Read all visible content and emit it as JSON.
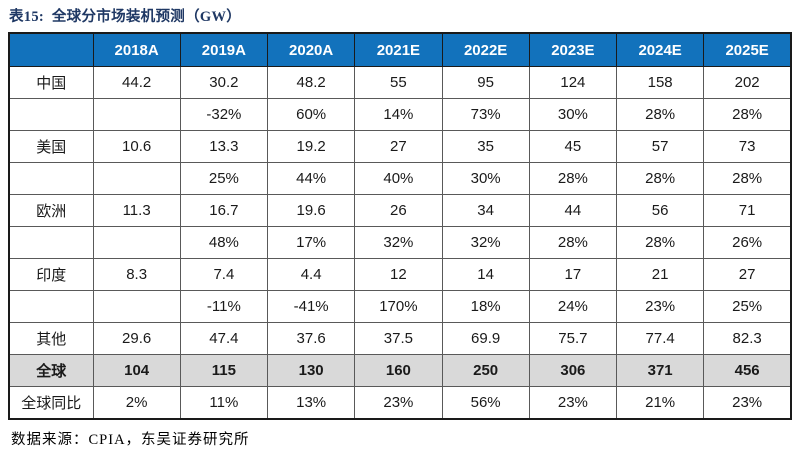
{
  "title": "表15:  全球分市场装机预测（GW）",
  "table": {
    "header": [
      "",
      "2018A",
      "2019A",
      "2020A",
      "2021E",
      "2022E",
      "2023E",
      "2024E",
      "2025E"
    ],
    "rows": [
      {
        "label": "中国",
        "type": "value",
        "cells": [
          "44.2",
          "30.2",
          "48.2",
          "55",
          "95",
          "124",
          "158",
          "202"
        ]
      },
      {
        "label": "",
        "type": "growth",
        "cells": [
          "",
          "-32%",
          "60%",
          "14%",
          "73%",
          "30%",
          "28%",
          "28%"
        ]
      },
      {
        "label": "美国",
        "type": "value",
        "cells": [
          "10.6",
          "13.3",
          "19.2",
          "27",
          "35",
          "45",
          "57",
          "73"
        ]
      },
      {
        "label": "",
        "type": "growth",
        "cells": [
          "",
          "25%",
          "44%",
          "40%",
          "30%",
          "28%",
          "28%",
          "28%"
        ]
      },
      {
        "label": "欧洲",
        "type": "value",
        "cells": [
          "11.3",
          "16.7",
          "19.6",
          "26",
          "34",
          "44",
          "56",
          "71"
        ]
      },
      {
        "label": "",
        "type": "growth",
        "cells": [
          "",
          "48%",
          "17%",
          "32%",
          "32%",
          "28%",
          "28%",
          "26%"
        ]
      },
      {
        "label": "印度",
        "type": "value",
        "cells": [
          "8.3",
          "7.4",
          "4.4",
          "12",
          "14",
          "17",
          "21",
          "27"
        ]
      },
      {
        "label": "",
        "type": "growth",
        "cells": [
          "",
          "-11%",
          "-41%",
          "170%",
          "18%",
          "24%",
          "23%",
          "25%"
        ]
      },
      {
        "label": "其他",
        "type": "value",
        "cells": [
          "29.6",
          "47.4",
          "37.6",
          "37.5",
          "69.9",
          "75.7",
          "77.4",
          "82.3"
        ]
      },
      {
        "label": "全球",
        "type": "total",
        "cells": [
          "104",
          "115",
          "130",
          "160",
          "250",
          "306",
          "371",
          "456"
        ]
      },
      {
        "label": "全球同比",
        "type": "growth-total",
        "cells": [
          "2%",
          "11%",
          "13%",
          "23%",
          "56%",
          "23%",
          "21%",
          "23%"
        ]
      }
    ]
  },
  "source": {
    "text": "数据来源：CPIA，东吴证券研究所"
  },
  "colors": {
    "header_bg": "#1272bc",
    "header_text": "#ffffff",
    "total_bg": "#d9d9d9",
    "title_color": "#1f3864",
    "border_color": "#595959",
    "outer_border": "#1a1a1a",
    "text_color": "#1a1a1a"
  }
}
